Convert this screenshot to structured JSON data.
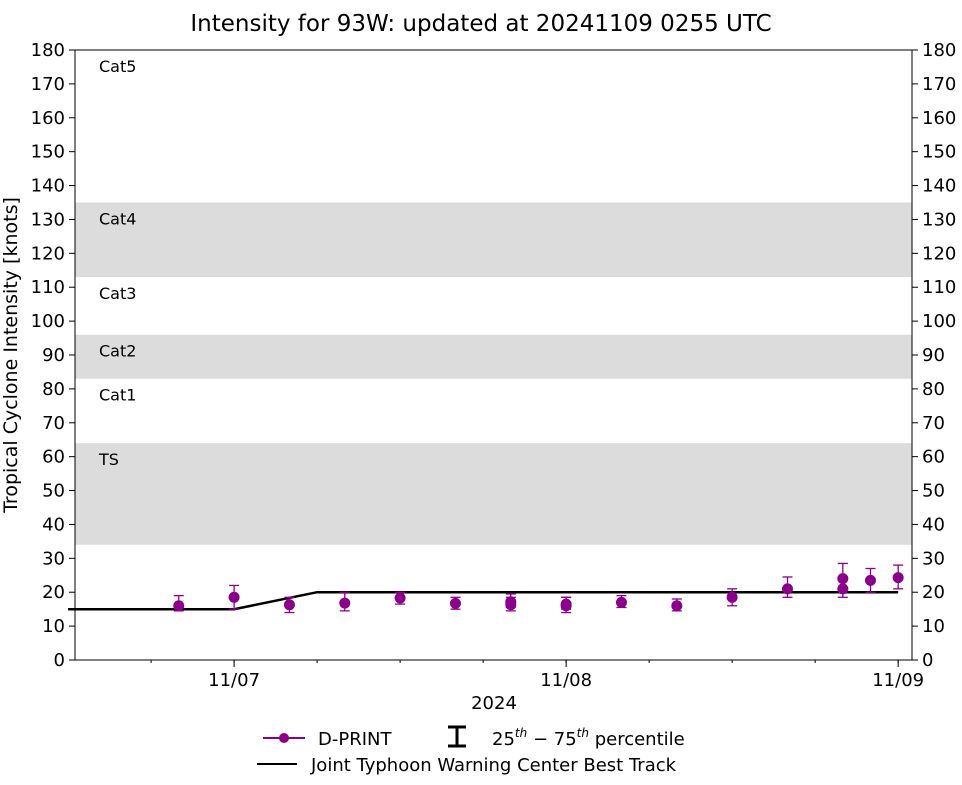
{
  "chart_data": {
    "type": "scatter",
    "title": "Intensity for 93W: updated at 20241109 0255 UTC",
    "xlabel": "2024",
    "ylabel": "Tropical Cyclone Intensity [knots]",
    "ylim": [
      0,
      180
    ],
    "yticks": [
      0,
      10,
      20,
      30,
      40,
      50,
      60,
      70,
      80,
      90,
      100,
      110,
      120,
      130,
      140,
      150,
      160,
      170,
      180
    ],
    "xlim": [
      "2024-11-06 12:30",
      "2024-11-09 01:00"
    ],
    "xticks": [
      {
        "label": "11/07",
        "x": "2024-11-07 00:00"
      },
      {
        "label": "11/08",
        "x": "2024-11-08 00:00"
      },
      {
        "label": "11/09",
        "x": "2024-11-09 00:00"
      }
    ],
    "grid": false,
    "bands": [
      {
        "label": "TS",
        "y0": 34,
        "y1": 64,
        "fill": "#dcdcdc"
      },
      {
        "label": "Cat1",
        "y0": 64,
        "y1": 83,
        "fill": "#ffffff"
      },
      {
        "label": "Cat2",
        "y0": 83,
        "y1": 96,
        "fill": "#dcdcdc"
      },
      {
        "label": "Cat3",
        "y0": 96,
        "y1": 113,
        "fill": "#ffffff"
      },
      {
        "label": "Cat4",
        "y0": 113,
        "y1": 135,
        "fill": "#dcdcdc"
      },
      {
        "label": "Cat5",
        "y0": 135,
        "y1": 180,
        "fill": "#ffffff"
      }
    ],
    "series": [
      {
        "name": "D-PRINT",
        "kind": "scatter-errorbar",
        "color": "#8b008b",
        "points": [
          {
            "x": "2024-11-06 20:00",
            "y": 16,
            "lo": 14.5,
            "hi": 19
          },
          {
            "x": "2024-11-07 00:00",
            "y": 18.5,
            "lo": 15,
            "hi": 22
          },
          {
            "x": "2024-11-07 04:00",
            "y": 16.3,
            "lo": 14,
            "hi": 18.5
          },
          {
            "x": "2024-11-07 08:00",
            "y": 16.8,
            "lo": 14.5,
            "hi": 20
          },
          {
            "x": "2024-11-07 12:00",
            "y": 18.3,
            "lo": 16.5,
            "hi": 20
          },
          {
            "x": "2024-11-07 16:00",
            "y": 16.7,
            "lo": 15,
            "hi": 18.5
          },
          {
            "x": "2024-11-07 20:00",
            "y": 17.2,
            "lo": 15.5,
            "hi": 19.5
          },
          {
            "x": "2024-11-08 00:00 -4h",
            "y": 16.3,
            "lo": 14.5,
            "hi": 18.5
          },
          {
            "x": "2024-11-08 04:00 -4h",
            "y": 16,
            "lo": 14,
            "hi": 18.5
          },
          {
            "x": "2024-11-08 00:00",
            "y": 16.5,
            "lo": 15,
            "hi": 18.5
          },
          {
            "x": "2024-11-08 04:00",
            "y": 17,
            "lo": 15.5,
            "hi": 19
          },
          {
            "x": "2024-11-08 08:00",
            "y": 16,
            "lo": 14.5,
            "hi": 18
          },
          {
            "x": "2024-11-08 12:00",
            "y": 18.5,
            "lo": 16,
            "hi": 21
          },
          {
            "x": "2024-11-08 16:00",
            "y": 21,
            "lo": 18.5,
            "hi": 24.5
          },
          {
            "x": "2024-11-08 20:00",
            "y": 21,
            "lo": 18.5,
            "hi": 24.5
          },
          {
            "x": "2024-11-09 00:00 -4h",
            "y": 24,
            "lo": 21,
            "hi": 28.5
          },
          {
            "x": "2024-11-09 00:00 -2h",
            "y": 23.5,
            "lo": 20,
            "hi": 27
          },
          {
            "x": "2024-11-09 00:00",
            "y": 24.3,
            "lo": 21,
            "hi": 28
          }
        ]
      },
      {
        "name": "Joint Typhoon Warning Center Best Track",
        "kind": "line",
        "color": "#000000",
        "points": [
          {
            "x": "2024-11-06 12:00",
            "y": 15
          },
          {
            "x": "2024-11-07 00:00",
            "y": 15
          },
          {
            "x": "2024-11-07 06:00",
            "y": 20
          },
          {
            "x": "2024-11-09 00:00",
            "y": 20
          }
        ]
      }
    ],
    "legend": {
      "placement": "bottom-center",
      "dprint_label": "D-PRINT",
      "percentile_label_pre": "25",
      "percentile_sup1": "th",
      "percentile_mid": " − 75",
      "percentile_sup2": "th",
      "percentile_label_post": " percentile",
      "jtwc_label": "Joint Typhoon Warning Center Best Track"
    }
  }
}
